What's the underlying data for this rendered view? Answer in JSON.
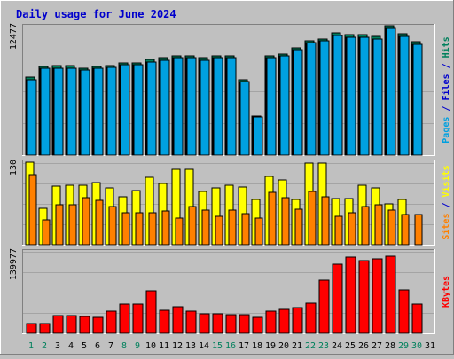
{
  "title": "Daily usage for June 2024",
  "colors": {
    "background": "#c0c0c0",
    "title": "#0000cc",
    "hits": "#00805c",
    "files": "#0000cc",
    "pages": "#00a0e0",
    "visits": "#ffff00",
    "sites": "#ff8000",
    "kbytes": "#ff0000",
    "weekend_day": "#00805c",
    "weekday": "#000000"
  },
  "chart_data": [
    {
      "type": "bar",
      "name": "hits-files-pages",
      "categories": [
        "1",
        "2",
        "3",
        "4",
        "5",
        "6",
        "7",
        "8",
        "9",
        "10",
        "11",
        "12",
        "13",
        "14",
        "15",
        "16",
        "17",
        "18",
        "19",
        "20",
        "21",
        "22",
        "23",
        "24",
        "25",
        "26",
        "27",
        "28",
        "29",
        "30",
        "31"
      ],
      "ymax": 12477,
      "ymax_label": "12477",
      "right_label": [
        "Pages",
        "Files",
        "Hits"
      ],
      "series": [
        {
          "name": "Hits",
          "values": [
            7550,
            8630,
            8670,
            8670,
            8430,
            8630,
            8710,
            8990,
            8990,
            9270,
            9480,
            9670,
            9670,
            9450,
            9670,
            9670,
            7310,
            3820,
            9670,
            9830,
            10440,
            11140,
            11300,
            11870,
            11700,
            11670,
            11550,
            12540,
            11750,
            11000,
            null
          ]
        },
        {
          "name": "Files",
          "values": [
            7310,
            8400,
            8430,
            8430,
            8240,
            8400,
            8480,
            8790,
            8790,
            9040,
            9230,
            9440,
            9440,
            9230,
            9440,
            9440,
            7140,
            3660,
            9440,
            9620,
            10200,
            10890,
            11080,
            11620,
            11460,
            11460,
            11310,
            12290,
            11510,
            10760,
            null
          ]
        },
        {
          "name": "Pages",
          "values": [
            7310,
            8400,
            8430,
            8430,
            8240,
            8400,
            8480,
            8790,
            8790,
            9040,
            9230,
            9440,
            9440,
            9230,
            9440,
            9440,
            7140,
            3660,
            9440,
            9620,
            10200,
            10890,
            11080,
            11620,
            11460,
            11460,
            11310,
            12290,
            11510,
            10760,
            null
          ]
        }
      ]
    },
    {
      "type": "bar",
      "name": "visits-sites",
      "categories": [
        "1",
        "2",
        "3",
        "4",
        "5",
        "6",
        "7",
        "8",
        "9",
        "10",
        "11",
        "12",
        "13",
        "14",
        "15",
        "16",
        "17",
        "18",
        "19",
        "20",
        "21",
        "22",
        "23",
        "24",
        "25",
        "26",
        "27",
        "28",
        "29",
        "30",
        "31"
      ],
      "ymax": 130,
      "ymax_label": "130",
      "right_label": [
        "Sites",
        "Visits"
      ],
      "series": [
        {
          "name": "Visits",
          "values": [
            132,
            58,
            93,
            95,
            95,
            99,
            90,
            76,
            86,
            107,
            98,
            120,
            120,
            85,
            90,
            94,
            92,
            72,
            109,
            103,
            72,
            130,
            130,
            74,
            74,
            95,
            91,
            65,
            72,
            null,
            null
          ]
        },
        {
          "name": "Sites",
          "values": [
            112,
            40,
            64,
            64,
            75,
            71,
            61,
            51,
            51,
            51,
            53,
            43,
            61,
            55,
            45,
            55,
            50,
            43,
            83,
            75,
            57,
            85,
            77,
            45,
            51,
            61,
            63,
            55,
            48,
            48,
            null
          ]
        }
      ]
    },
    {
      "type": "bar",
      "name": "kbytes",
      "categories": [
        "1",
        "2",
        "3",
        "4",
        "5",
        "6",
        "7",
        "8",
        "9",
        "10",
        "11",
        "12",
        "13",
        "14",
        "15",
        "16",
        "17",
        "18",
        "19",
        "20",
        "21",
        "22",
        "23",
        "24",
        "25",
        "26",
        "27",
        "28",
        "29",
        "30",
        "31"
      ],
      "ymax": 139977,
      "ymax_label": "139977",
      "right_label": [
        "KBytes"
      ],
      "series": [
        {
          "name": "KBytes",
          "values": [
            17000,
            17000,
            31000,
            31000,
            29000,
            27000,
            38000,
            50000,
            50000,
            73000,
            39000,
            45000,
            38000,
            33000,
            33000,
            32000,
            32000,
            27000,
            38000,
            41000,
            44000,
            51000,
            91000,
            119000,
            131000,
            125000,
            128000,
            132000,
            74000,
            50000,
            null
          ]
        }
      ]
    }
  ],
  "day_numbers": [
    "1",
    "2",
    "3",
    "4",
    "5",
    "6",
    "7",
    "8",
    "9",
    "10",
    "11",
    "12",
    "13",
    "14",
    "15",
    "16",
    "17",
    "18",
    "19",
    "20",
    "21",
    "22",
    "23",
    "24",
    "25",
    "26",
    "27",
    "28",
    "29",
    "30",
    "31"
  ],
  "weekend_days": [
    "1",
    "2",
    "8",
    "9",
    "15",
    "16",
    "22",
    "23",
    "29",
    "30"
  ]
}
